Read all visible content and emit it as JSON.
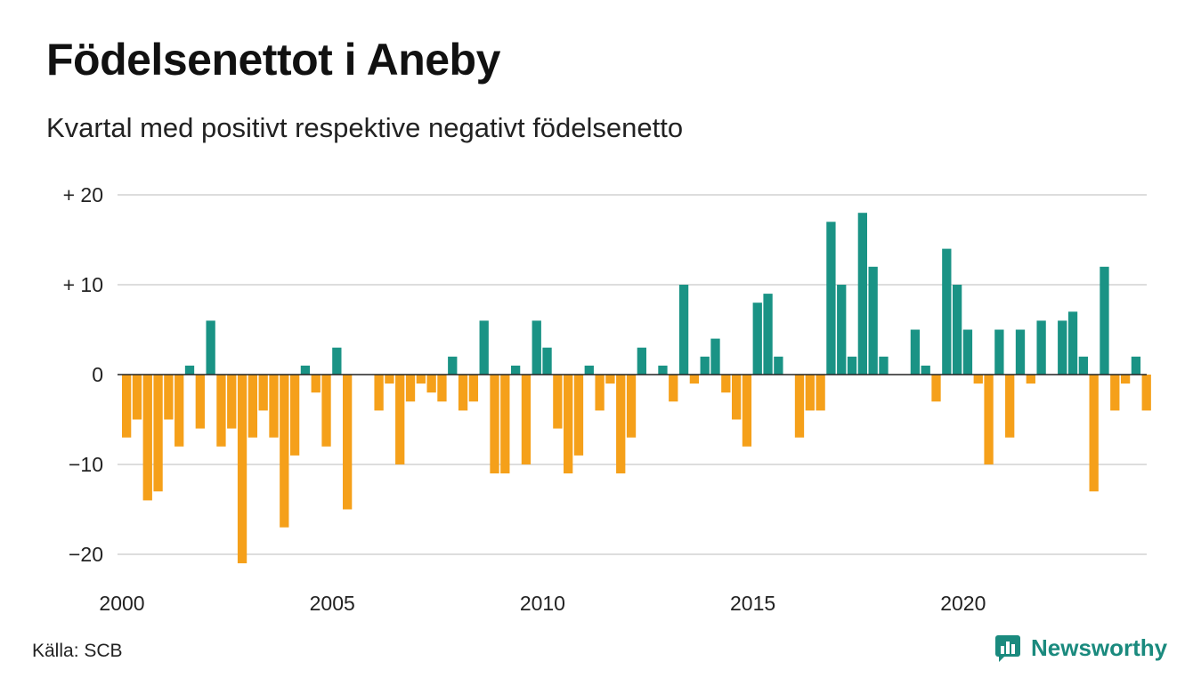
{
  "header": {
    "title": "Födelsenettot i Aneby",
    "subtitle": "Kvartal med positivt respektive negativt födelsenetto"
  },
  "footer": {
    "source": "Källa: SCB",
    "brand": "Newsworthy",
    "brand_icon": "bar-chart-logo-icon"
  },
  "colors": {
    "positive": "#1a9385",
    "negative": "#f5a01a",
    "grid": "#dddddd",
    "brand": "#1a8a7e"
  },
  "chart_data": {
    "type": "bar",
    "x_start": "2000 Q1",
    "frequency": "quarterly",
    "x_tick_labels": [
      "2000",
      "2005",
      "2010",
      "2015",
      "2020"
    ],
    "y_ticks": [
      20,
      10,
      0,
      -10,
      -20
    ],
    "y_tick_labels": [
      "+ 20",
      "+ 10",
      "0",
      "−10",
      "−20"
    ],
    "ylim": [
      -21,
      21
    ],
    "grid": true,
    "values": [
      -7,
      -5,
      -14,
      -13,
      -5,
      -8,
      1,
      -6,
      6,
      -8,
      -6,
      -21,
      -7,
      -4,
      -7,
      -17,
      -9,
      1,
      -2,
      -8,
      3,
      -15,
      0,
      0,
      -4,
      -1,
      -10,
      -3,
      -1,
      -2,
      -3,
      2,
      -4,
      -3,
      6,
      -11,
      -11,
      1,
      -10,
      6,
      3,
      -6,
      -11,
      -9,
      1,
      -4,
      -1,
      -11,
      -7,
      3,
      0,
      1,
      -3,
      10,
      -1,
      2,
      4,
      -2,
      -5,
      -8,
      8,
      9,
      2,
      0,
      -7,
      -4,
      -4,
      17,
      10,
      2,
      18,
      12,
      2,
      0,
      0,
      5,
      1,
      -3,
      14,
      10,
      5,
      -1,
      -10,
      5,
      -7,
      5,
      -1,
      6,
      0,
      6,
      7,
      2,
      -13,
      12,
      -4,
      -1,
      2,
      -4
    ]
  }
}
